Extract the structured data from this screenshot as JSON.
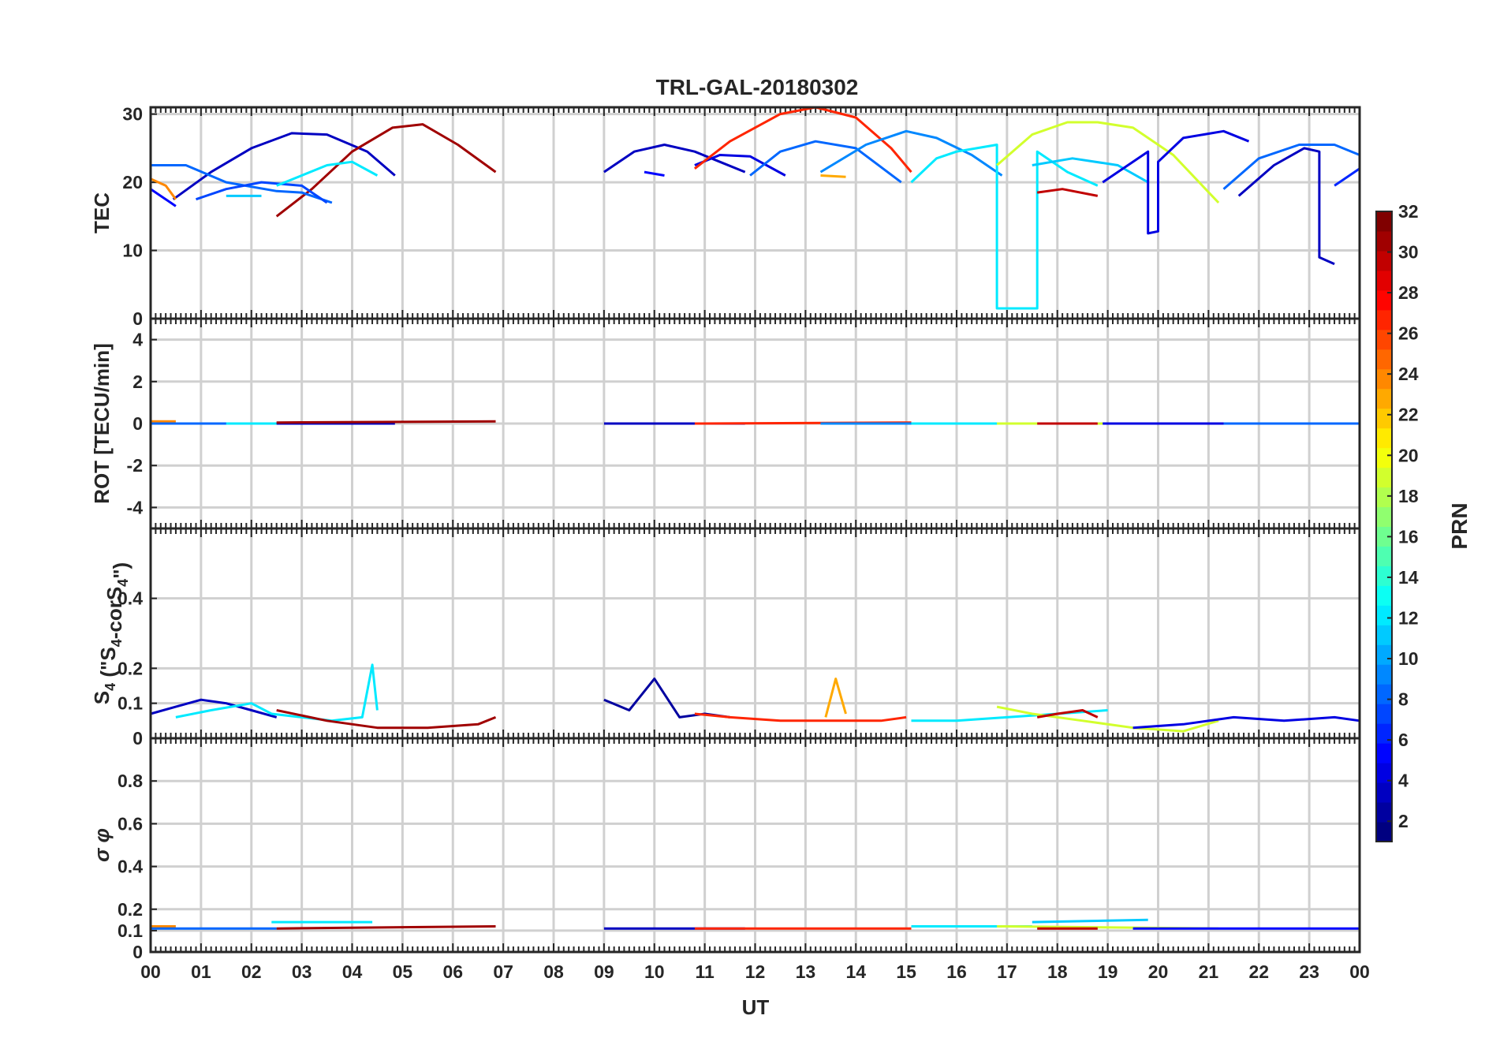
{
  "chart_data": {
    "type": "line",
    "title": "TRL-GAL-20180302",
    "xlabel": "UT",
    "x_ticks": [
      "00",
      "01",
      "02",
      "03",
      "04",
      "05",
      "06",
      "07",
      "08",
      "09",
      "10",
      "11",
      "12",
      "13",
      "14",
      "15",
      "16",
      "17",
      "18",
      "19",
      "20",
      "21",
      "22",
      "23",
      "00"
    ],
    "xlim": [
      0,
      24
    ],
    "grid": true,
    "colorbar": {
      "label": "PRN",
      "range": [
        1,
        32
      ],
      "ticks": [
        "2",
        "4",
        "6",
        "8",
        "10",
        "12",
        "14",
        "16",
        "18",
        "20",
        "22",
        "24",
        "26",
        "28",
        "30",
        "32"
      ],
      "colormap": "jet"
    },
    "panels": [
      {
        "ylabel": "TEC",
        "ylim": [
          0,
          31
        ],
        "yticks": [
          "0",
          "10",
          "20",
          "30"
        ],
        "series": [
          {
            "prn": 3,
            "x": [
              0.45,
              1.2,
              2.0,
              2.8,
              3.5,
              4.3,
              4.85
            ],
            "y": [
              17.5,
              21.5,
              25,
              27.2,
              27,
              24.5,
              21
            ]
          },
          {
            "prn": 31,
            "x": [
              2.5,
              3.2,
              4.0,
              4.8,
              5.4,
              6.1,
              6.85
            ],
            "y": [
              15,
              19,
              24.5,
              28,
              28.5,
              25.5,
              21.5
            ]
          },
          {
            "prn": 8,
            "x": [
              0,
              0.7,
              1.5,
              2.5,
              3.0,
              3.6
            ],
            "y": [
              22.5,
              22.5,
              20,
              18.7,
              18.5,
              17
            ]
          },
          {
            "prn": 5,
            "x": [
              0,
              0.3,
              0.5
            ],
            "y": [
              19,
              17.5,
              16.5
            ]
          },
          {
            "prn": 7,
            "x": [
              0.9,
              1.5,
              2.2,
              3.0,
              3.5
            ],
            "y": [
              17.5,
              19,
              20,
              19.5,
              17
            ]
          },
          {
            "prn": 24,
            "x": [
              0,
              0.3,
              0.5
            ],
            "y": [
              20.5,
              19.5,
              17.5
            ]
          },
          {
            "prn": 12,
            "x": [
              2.5,
              3.5,
              4.0,
              4.5
            ],
            "y": [
              19.5,
              22.5,
              23,
              21
            ]
          },
          {
            "prn": 11,
            "x": [
              1.5,
              2.2
            ],
            "y": [
              18,
              18
            ]
          },
          {
            "prn": 3,
            "x": [
              9.0,
              9.6,
              10.2,
              10.8,
              11.3,
              11.8
            ],
            "y": [
              21.5,
              24.5,
              25.5,
              24.5,
              23,
              21.5
            ]
          },
          {
            "prn": 5,
            "x": [
              9.8,
              10.2
            ],
            "y": [
              21.5,
              21
            ]
          },
          {
            "prn": 4,
            "x": [
              10.8,
              11.3,
              11.9,
              12.6
            ],
            "y": [
              22.5,
              24,
              23.8,
              21
            ]
          },
          {
            "prn": 27,
            "x": [
              10.8,
              11.5,
              12.5,
              13.2,
              14.0,
              14.7,
              15.1
            ],
            "y": [
              22,
              26,
              30,
              31,
              29.5,
              25,
              21.5
            ]
          },
          {
            "prn": 8,
            "x": [
              11.9,
              12.5,
              13.2,
              14.0,
              14.9
            ],
            "y": [
              21,
              24.5,
              26,
              25,
              20
            ]
          },
          {
            "prn": 9,
            "x": [
              13.3,
              14.2,
              15.0,
              15.6,
              16.3,
              16.9
            ],
            "y": [
              21.5,
              25.5,
              27.5,
              26.5,
              24,
              21
            ]
          },
          {
            "prn": 23,
            "x": [
              13.3,
              13.8
            ],
            "y": [
              21,
              20.8
            ]
          },
          {
            "prn": 12,
            "x": [
              15.1,
              15.6,
              16.0,
              16.4,
              16.8,
              16.8,
              17.0,
              17.6,
              17.6,
              18.2,
              18.8
            ],
            "y": [
              20,
              23.5,
              24.5,
              25,
              25.5,
              1.5,
              1.5,
              1.5,
              24.5,
              21.5,
              19.5
            ]
          },
          {
            "prn": 19,
            "x": [
              16.8,
              17.5,
              18.2,
              18.8,
              19.5,
              20.3,
              21.2
            ],
            "y": [
              22.5,
              27,
              28.8,
              28.8,
              28,
              24,
              17
            ]
          },
          {
            "prn": 11,
            "x": [
              17.5,
              18.3,
              19.2,
              19.8
            ],
            "y": [
              22.5,
              23.5,
              22.5,
              20
            ]
          },
          {
            "prn": 30,
            "x": [
              17.6,
              18.1,
              18.8
            ],
            "y": [
              18.5,
              19,
              18
            ]
          },
          {
            "prn": 4,
            "x": [
              18.9,
              19.8,
              19.8,
              20.0,
              20.0,
              20.5,
              21.3,
              21.8
            ],
            "y": [
              20,
              24.5,
              12.5,
              12.8,
              23,
              26.5,
              27.5,
              26
            ]
          },
          {
            "prn": 8,
            "x": [
              21.3,
              22.0,
              22.8,
              23.5,
              24.0
            ],
            "y": [
              19,
              23.5,
              25.5,
              25.5,
              24
            ]
          },
          {
            "prn": 3,
            "x": [
              21.6,
              22.3,
              22.9,
              23.2,
              23.2,
              23.5
            ],
            "y": [
              18,
              22.5,
              25,
              24.5,
              9,
              8
            ]
          },
          {
            "prn": 6,
            "x": [
              23.5,
              24.0,
              24.0
            ],
            "y": [
              19.5,
              22,
              15
            ]
          }
        ]
      },
      {
        "ylabel": "ROT [TECU/min]",
        "ylim": [
          -5,
          5
        ],
        "yticks": [
          "-4",
          "-2",
          "0",
          "2",
          "4"
        ],
        "series": [
          {
            "prn": 24,
            "x": [
              0,
              0.5
            ],
            "y": [
              0.1,
              0.1
            ]
          },
          {
            "prn": 8,
            "x": [
              0,
              2.5
            ],
            "y": [
              0,
              0
            ]
          },
          {
            "prn": 12,
            "x": [
              1.5,
              4.5
            ],
            "y": [
              0,
              0
            ]
          },
          {
            "prn": 3,
            "x": [
              2.5,
              4.85
            ],
            "y": [
              0,
              0
            ]
          },
          {
            "prn": 31,
            "x": [
              2.5,
              6.85
            ],
            "y": [
              0.05,
              0.1
            ]
          },
          {
            "prn": 3,
            "x": [
              9.0,
              11.8
            ],
            "y": [
              0,
              0
            ]
          },
          {
            "prn": 27,
            "x": [
              10.8,
              15.1
            ],
            "y": [
              0,
              0.05
            ]
          },
          {
            "prn": 9,
            "x": [
              13.3,
              16.9
            ],
            "y": [
              0,
              0
            ]
          },
          {
            "prn": 12,
            "x": [
              15.1,
              18.8
            ],
            "y": [
              0,
              0
            ]
          },
          {
            "prn": 19,
            "x": [
              16.8,
              21.2
            ],
            "y": [
              0,
              0
            ]
          },
          {
            "prn": 30,
            "x": [
              17.6,
              18.8
            ],
            "y": [
              0,
              0
            ]
          },
          {
            "prn": 4,
            "x": [
              18.9,
              21.8
            ],
            "y": [
              0,
              0
            ]
          },
          {
            "prn": 8,
            "x": [
              21.3,
              24.0
            ],
            "y": [
              0,
              0
            ]
          }
        ]
      },
      {
        "ylabel": "S",
        "ylabel_sub": "4",
        "ylabel_rest": " (\"S",
        "ylabel_sub2": "4",
        "ylabel_rest2": "-corS",
        "ylabel_sub3": "4",
        "ylabel_end": "\")",
        "ylim": [
          0,
          0.6
        ],
        "yticks": [
          "0",
          "0.1",
          "0.2",
          "0.4"
        ],
        "series": [
          {
            "prn": 3,
            "x": [
              0,
              0.5,
              1.0,
              1.5,
              2.0,
              2.5
            ],
            "y": [
              0.07,
              0.09,
              0.11,
              0.1,
              0.08,
              0.06
            ]
          },
          {
            "prn": 12,
            "x": [
              0.5,
              1.2,
              2.0,
              2.4,
              3.0,
              3.6,
              4.2,
              4.4,
              4.5
            ],
            "y": [
              0.06,
              0.08,
              0.1,
              0.07,
              0.06,
              0.05,
              0.06,
              0.21,
              0.08
            ]
          },
          {
            "prn": 31,
            "x": [
              2.5,
              3.5,
              4.5,
              5.5,
              6.5,
              6.85
            ],
            "y": [
              0.08,
              0.05,
              0.03,
              0.03,
              0.04,
              0.06
            ]
          },
          {
            "prn": 2,
            "x": [
              9.0,
              9.5,
              10.0,
              10.5,
              11.0,
              11.5
            ],
            "y": [
              0.11,
              0.08,
              0.17,
              0.06,
              0.07,
              0.06
            ]
          },
          {
            "prn": 27,
            "x": [
              10.8,
              11.5,
              12.5,
              13.5,
              14.5,
              15.0
            ],
            "y": [
              0.07,
              0.06,
              0.05,
              0.05,
              0.05,
              0.06
            ]
          },
          {
            "prn": 23,
            "x": [
              13.4,
              13.6,
              13.8
            ],
            "y": [
              0.06,
              0.17,
              0.07
            ]
          },
          {
            "prn": 12,
            "x": [
              15.1,
              16.0,
              17.0,
              18.0,
              19.0
            ],
            "y": [
              0.05,
              0.05,
              0.06,
              0.07,
              0.08
            ]
          },
          {
            "prn": 19,
            "x": [
              16.8,
              17.5,
              18.5,
              19.5,
              20.5,
              21.2
            ],
            "y": [
              0.09,
              0.07,
              0.05,
              0.03,
              0.02,
              0.05
            ]
          },
          {
            "prn": 30,
            "x": [
              17.6,
              18.0,
              18.5,
              18.8
            ],
            "y": [
              0.06,
              0.07,
              0.08,
              0.06
            ]
          },
          {
            "prn": 4,
            "x": [
              19.5,
              20.5,
              21.5,
              22.5,
              23.5,
              24.0
            ],
            "y": [
              0.03,
              0.04,
              0.06,
              0.05,
              0.06,
              0.05
            ]
          }
        ]
      },
      {
        "ylabel": "σ φ",
        "ylim": [
          0,
          1.0
        ],
        "yticks": [
          "0",
          "0.1",
          "0.2",
          "0.4",
          "0.6",
          "0.8"
        ],
        "series": [
          {
            "prn": 24,
            "x": [
              0,
              0.5
            ],
            "y": [
              0.12,
              0.12
            ]
          },
          {
            "prn": 8,
            "x": [
              0,
              2.5
            ],
            "y": [
              0.11,
              0.11
            ]
          },
          {
            "prn": 12,
            "x": [
              2.4,
              4.4
            ],
            "y": [
              0.14,
              0.14
            ]
          },
          {
            "prn": 31,
            "x": [
              2.5,
              6.85
            ],
            "y": [
              0.11,
              0.12
            ]
          },
          {
            "prn": 3,
            "x": [
              9.0,
              11.8
            ],
            "y": [
              0.11,
              0.11
            ]
          },
          {
            "prn": 27,
            "x": [
              10.8,
              15.1
            ],
            "y": [
              0.11,
              0.11
            ]
          },
          {
            "prn": 12,
            "x": [
              15.1,
              17.5
            ],
            "y": [
              0.12,
              0.12
            ]
          },
          {
            "prn": 11,
            "x": [
              17.5,
              19.8
            ],
            "y": [
              0.14,
              0.15
            ]
          },
          {
            "prn": 19,
            "x": [
              16.8,
              21.2
            ],
            "y": [
              0.12,
              0.11
            ]
          },
          {
            "prn": 30,
            "x": [
              17.6,
              18.8
            ],
            "y": [
              0.11,
              0.11
            ]
          },
          {
            "prn": 5,
            "x": [
              19.5,
              24.0
            ],
            "y": [
              0.11,
              0.11
            ]
          }
        ]
      }
    ]
  }
}
